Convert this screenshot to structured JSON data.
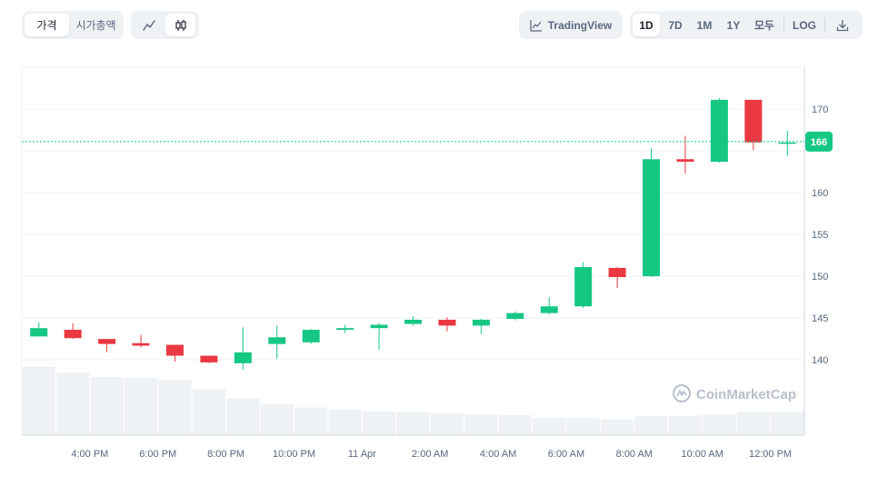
{
  "toolbar": {
    "type_tabs": [
      {
        "label": "가격",
        "active": true
      },
      {
        "label": "시가총액",
        "active": false
      }
    ],
    "chart_modes": [
      {
        "icon": "line-chart-icon",
        "active": false
      },
      {
        "icon": "candlestick-icon",
        "active": true
      }
    ],
    "tradingview_label": "TradingView",
    "ranges": [
      {
        "label": "1D",
        "active": true
      },
      {
        "label": "7D",
        "active": false
      },
      {
        "label": "1M",
        "active": false
      },
      {
        "label": "1Y",
        "active": false
      },
      {
        "label": "모두",
        "active": false
      }
    ],
    "log_label": "LOG",
    "download_icon": "download-icon"
  },
  "watermark": "CoinMarketCap",
  "colors": {
    "up": "#16c784",
    "down": "#ea3943",
    "current_price_badge": "#16c784",
    "volume": "#eff2f5",
    "grid": "#eff2f5"
  },
  "chart_data": {
    "type": "candlestick",
    "current_price_label": "166",
    "current_price": 166.1,
    "ylim": [
      131,
      175
    ],
    "y_ticks": [
      140,
      145,
      150,
      155,
      160,
      165,
      170
    ],
    "y_tick_labels": [
      "140",
      "145",
      "150",
      "155",
      "160",
      "",
      "170"
    ],
    "x_tick_labels": [
      "4:00 PM",
      "6:00 PM",
      "8:00 PM",
      "10:00 PM",
      "11 Apr",
      "2:00 AM",
      "4:00 AM",
      "6:00 AM",
      "8:00 AM",
      "10:00 AM",
      "12:00 PM"
    ],
    "x_tick_candle_index": [
      1,
      3,
      5,
      7,
      9,
      11,
      13,
      15,
      17,
      19,
      21
    ],
    "candles": [
      {
        "o": 142.8,
        "h": 144.5,
        "l": 142.8,
        "c": 143.8
      },
      {
        "o": 143.6,
        "h": 144.4,
        "l": 142.5,
        "c": 142.6
      },
      {
        "o": 142.5,
        "h": 142.5,
        "l": 140.9,
        "c": 141.9
      },
      {
        "o": 142.0,
        "h": 143.0,
        "l": 141.5,
        "c": 141.7
      },
      {
        "o": 141.8,
        "h": 141.8,
        "l": 139.8,
        "c": 140.5
      },
      {
        "o": 140.5,
        "h": 140.5,
        "l": 139.6,
        "c": 139.7
      },
      {
        "o": 139.6,
        "h": 143.9,
        "l": 138.8,
        "c": 140.9
      },
      {
        "o": 141.9,
        "h": 144.1,
        "l": 140.1,
        "c": 142.7
      },
      {
        "o": 142.1,
        "h": 143.7,
        "l": 141.9,
        "c": 143.6
      },
      {
        "o": 143.6,
        "h": 144.2,
        "l": 143.2,
        "c": 143.8
      },
      {
        "o": 143.8,
        "h": 144.4,
        "l": 141.2,
        "c": 144.2
      },
      {
        "o": 144.3,
        "h": 145.2,
        "l": 144.1,
        "c": 144.8
      },
      {
        "o": 144.8,
        "h": 145.1,
        "l": 143.4,
        "c": 144.1
      },
      {
        "o": 144.1,
        "h": 144.9,
        "l": 143.1,
        "c": 144.8
      },
      {
        "o": 144.9,
        "h": 145.8,
        "l": 144.7,
        "c": 145.6
      },
      {
        "o": 145.6,
        "h": 147.5,
        "l": 145.4,
        "c": 146.4
      },
      {
        "o": 146.4,
        "h": 151.7,
        "l": 146.2,
        "c": 151.1
      },
      {
        "o": 151.0,
        "h": 151.1,
        "l": 148.6,
        "c": 149.9
      },
      {
        "o": 150.0,
        "h": 165.3,
        "l": 149.9,
        "c": 164.0
      },
      {
        "o": 164.0,
        "h": 166.8,
        "l": 162.3,
        "c": 163.7
      },
      {
        "o": 163.7,
        "h": 171.3,
        "l": 163.6,
        "c": 171.1
      },
      {
        "o": 171.1,
        "h": 171.1,
        "l": 165.1,
        "c": 166.0
      },
      {
        "o": 166.0,
        "h": 167.4,
        "l": 164.4,
        "c": 166.0
      }
    ],
    "volume_relative": [
      0.92,
      0.84,
      0.78,
      0.77,
      0.74,
      0.62,
      0.49,
      0.42,
      0.37,
      0.34,
      0.32,
      0.31,
      0.3,
      0.28,
      0.27,
      0.23,
      0.23,
      0.21,
      0.26,
      0.26,
      0.28,
      0.31,
      0.31
    ]
  }
}
